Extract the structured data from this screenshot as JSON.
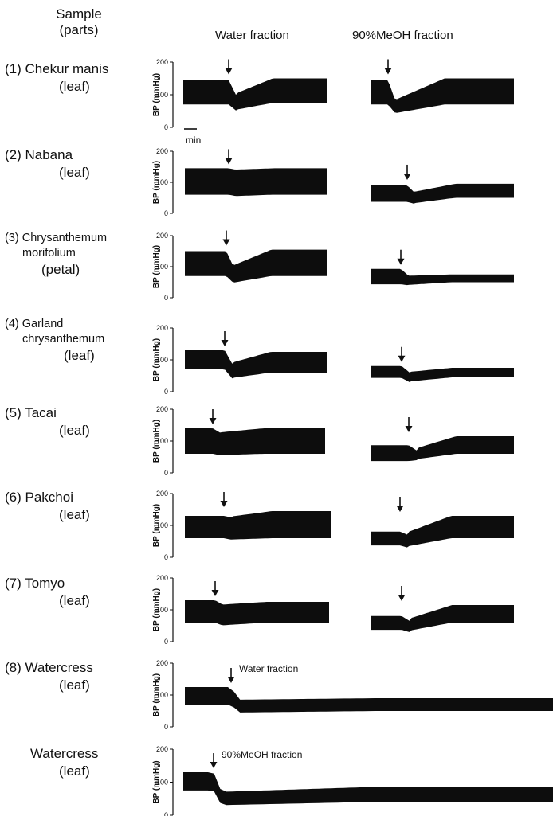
{
  "header": {
    "sample": "Sample",
    "parts": "(parts)",
    "water_fraction": "Water fraction",
    "meoh_fraction": "90%MeOH fraction"
  },
  "scale_bar_label": "min",
  "ylabel": "BP (mmHg)",
  "yticks": [
    "0",
    "100",
    "200"
  ],
  "panels": [
    {
      "name_line1": "(1) Chekur manis",
      "name_line2": "",
      "part": "(leaf)",
      "baseline": [
        70,
        145
      ],
      "water": {
        "nadir": [
          50,
          95
        ],
        "recovery": [
          75,
          150
        ]
      },
      "meoh": {
        "nadir": [
          40,
          75
        ],
        "recovery": [
          70,
          150
        ]
      }
    },
    {
      "name_line1": "(2) Nabana",
      "name_line2": "",
      "part": "(leaf)",
      "baseline": [
        60,
        145
      ],
      "water": {
        "nadir": [
          55,
          140
        ],
        "recovery": [
          60,
          145
        ]
      },
      "meoh": {
        "nadir": [
          30,
          65
        ],
        "recovery": [
          50,
          95
        ]
      }
    },
    {
      "name_line1": "(3) Chrysanthemum",
      "name_line2": "morifolium",
      "part": "(petal)",
      "baseline": [
        70,
        150
      ],
      "water": {
        "nadir": [
          45,
          95
        ],
        "recovery": [
          70,
          155
        ]
      },
      "meoh": {
        "nadir": [
          40,
          70
        ],
        "recovery": [
          50,
          75
        ]
      }
    },
    {
      "name_line1": "(4) Garland",
      "name_line2": "chrysanthemum",
      "part": "(leaf)",
      "baseline": [
        70,
        130
      ],
      "water": {
        "nadir": [
          40,
          85
        ],
        "recovery": [
          60,
          125
        ]
      },
      "meoh": {
        "nadir": [
          30,
          60
        ],
        "recovery": [
          45,
          75
        ]
      }
    },
    {
      "name_line1": "(5) Tacai",
      "name_line2": "",
      "part": "(leaf)",
      "baseline": [
        60,
        140
      ],
      "water": {
        "nadir": [
          55,
          125
        ],
        "recovery": [
          60,
          140
        ]
      },
      "meoh": {
        "nadir": [
          40,
          70
        ],
        "recovery": [
          60,
          115
        ]
      }
    },
    {
      "name_line1": "(6) Pakchoi",
      "name_line2": "",
      "part": "(leaf)",
      "baseline": [
        60,
        130
      ],
      "water": {
        "nadir": [
          55,
          125
        ],
        "recovery": [
          60,
          145
        ]
      },
      "meoh": {
        "nadir": [
          30,
          70
        ],
        "recovery": [
          60,
          130
        ]
      }
    },
    {
      "name_line1": "(7) Tomyo",
      "name_line2": "",
      "part": "(leaf)",
      "baseline": [
        60,
        130
      ],
      "water": {
        "nadir": [
          50,
          115
        ],
        "recovery": [
          60,
          125
        ]
      },
      "meoh": {
        "nadir": [
          30,
          65
        ],
        "recovery": [
          60,
          115
        ]
      }
    },
    {
      "name_line1": "(8) Watercress",
      "name_line2": "",
      "part": "(leaf)",
      "baseline": [
        70,
        125
      ],
      "fraction": "Water fraction",
      "nadir": [
        45,
        85
      ],
      "recovery": [
        50,
        90
      ]
    },
    {
      "name_line1": "Watercress",
      "name_line2": "",
      "part": "(leaf)",
      "baseline": [
        75,
        130
      ],
      "fraction": "90%MeOH fraction",
      "nadir": [
        30,
        70
      ],
      "recovery": [
        40,
        85
      ]
    }
  ]
}
